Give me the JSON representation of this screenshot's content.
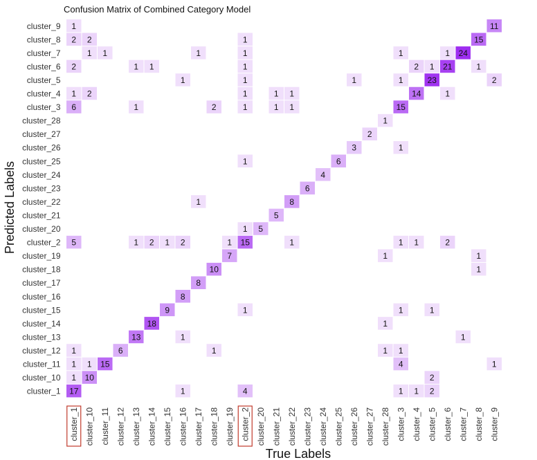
{
  "chart_data": {
    "type": "heatmap",
    "title": "Confusion Matrix of Combined Category Model",
    "xlabel": "True Labels",
    "ylabel": "Predicted Labels",
    "x_categories": [
      "cluster_1",
      "cluster_10",
      "cluster_11",
      "cluster_12",
      "cluster_13",
      "cluster_14",
      "cluster_15",
      "cluster_16",
      "cluster_17",
      "cluster_18",
      "cluster_19",
      "cluster_2",
      "cluster_20",
      "cluster_21",
      "cluster_22",
      "cluster_23",
      "cluster_24",
      "cluster_25",
      "cluster_26",
      "cluster_27",
      "cluster_28",
      "cluster_3",
      "cluster_4",
      "cluster_5",
      "cluster_6",
      "cluster_7",
      "cluster_8",
      "cluster_9"
    ],
    "y_categories": [
      "cluster_9",
      "cluster_8",
      "cluster_7",
      "cluster_6",
      "cluster_5",
      "cluster_4",
      "cluster_3",
      "cluster_28",
      "cluster_27",
      "cluster_26",
      "cluster_25",
      "cluster_24",
      "cluster_23",
      "cluster_22",
      "cluster_21",
      "cluster_20",
      "cluster_2",
      "cluster_19",
      "cluster_18",
      "cluster_17",
      "cluster_16",
      "cluster_15",
      "cluster_14",
      "cluster_13",
      "cluster_12",
      "cluster_11",
      "cluster_10",
      "cluster_1"
    ],
    "cells": [
      [
        "cluster_1",
        "cluster_9",
        1
      ],
      [
        "cluster_9",
        "cluster_9",
        11
      ],
      [
        "cluster_1",
        "cluster_8",
        2
      ],
      [
        "cluster_10",
        "cluster_8",
        2
      ],
      [
        "cluster_2",
        "cluster_8",
        1
      ],
      [
        "cluster_8",
        "cluster_8",
        15
      ],
      [
        "cluster_10",
        "cluster_7",
        1
      ],
      [
        "cluster_11",
        "cluster_7",
        1
      ],
      [
        "cluster_17",
        "cluster_7",
        1
      ],
      [
        "cluster_2",
        "cluster_7",
        1
      ],
      [
        "cluster_3",
        "cluster_7",
        1
      ],
      [
        "cluster_6",
        "cluster_7",
        1
      ],
      [
        "cluster_7",
        "cluster_7",
        24
      ],
      [
        "cluster_1",
        "cluster_6",
        2
      ],
      [
        "cluster_13",
        "cluster_6",
        1
      ],
      [
        "cluster_14",
        "cluster_6",
        1
      ],
      [
        "cluster_2",
        "cluster_6",
        1
      ],
      [
        "cluster_4",
        "cluster_6",
        2
      ],
      [
        "cluster_5",
        "cluster_6",
        1
      ],
      [
        "cluster_6",
        "cluster_6",
        21
      ],
      [
        "cluster_8",
        "cluster_6",
        1
      ],
      [
        "cluster_16",
        "cluster_5",
        1
      ],
      [
        "cluster_2",
        "cluster_5",
        1
      ],
      [
        "cluster_26",
        "cluster_5",
        1
      ],
      [
        "cluster_3",
        "cluster_5",
        1
      ],
      [
        "cluster_5",
        "cluster_5",
        23
      ],
      [
        "cluster_9",
        "cluster_5",
        2
      ],
      [
        "cluster_1",
        "cluster_4",
        1
      ],
      [
        "cluster_10",
        "cluster_4",
        2
      ],
      [
        "cluster_2",
        "cluster_4",
        1
      ],
      [
        "cluster_21",
        "cluster_4",
        1
      ],
      [
        "cluster_22",
        "cluster_4",
        1
      ],
      [
        "cluster_4",
        "cluster_4",
        14
      ],
      [
        "cluster_6",
        "cluster_4",
        1
      ],
      [
        "cluster_1",
        "cluster_3",
        6
      ],
      [
        "cluster_13",
        "cluster_3",
        1
      ],
      [
        "cluster_18",
        "cluster_3",
        2
      ],
      [
        "cluster_2",
        "cluster_3",
        1
      ],
      [
        "cluster_21",
        "cluster_3",
        1
      ],
      [
        "cluster_22",
        "cluster_3",
        1
      ],
      [
        "cluster_3",
        "cluster_3",
        15
      ],
      [
        "cluster_28",
        "cluster_28",
        1
      ],
      [
        "cluster_27",
        "cluster_27",
        2
      ],
      [
        "cluster_26",
        "cluster_26",
        3
      ],
      [
        "cluster_3",
        "cluster_26",
        1
      ],
      [
        "cluster_2",
        "cluster_25",
        1
      ],
      [
        "cluster_25",
        "cluster_25",
        6
      ],
      [
        "cluster_24",
        "cluster_24",
        4
      ],
      [
        "cluster_23",
        "cluster_23",
        6
      ],
      [
        "cluster_17",
        "cluster_22",
        1
      ],
      [
        "cluster_22",
        "cluster_22",
        8
      ],
      [
        "cluster_21",
        "cluster_21",
        5
      ],
      [
        "cluster_2",
        "cluster_20",
        1
      ],
      [
        "cluster_20",
        "cluster_20",
        5
      ],
      [
        "cluster_1",
        "cluster_2",
        5
      ],
      [
        "cluster_13",
        "cluster_2",
        1
      ],
      [
        "cluster_14",
        "cluster_2",
        2
      ],
      [
        "cluster_15",
        "cluster_2",
        1
      ],
      [
        "cluster_16",
        "cluster_2",
        2
      ],
      [
        "cluster_19",
        "cluster_2",
        1
      ],
      [
        "cluster_2",
        "cluster_2",
        15
      ],
      [
        "cluster_22",
        "cluster_2",
        1
      ],
      [
        "cluster_3",
        "cluster_2",
        1
      ],
      [
        "cluster_4",
        "cluster_2",
        1
      ],
      [
        "cluster_6",
        "cluster_2",
        2
      ],
      [
        "cluster_19",
        "cluster_19",
        7
      ],
      [
        "cluster_28",
        "cluster_19",
        1
      ],
      [
        "cluster_8",
        "cluster_19",
        1
      ],
      [
        "cluster_18",
        "cluster_18",
        10
      ],
      [
        "cluster_8",
        "cluster_18",
        1
      ],
      [
        "cluster_17",
        "cluster_17",
        8
      ],
      [
        "cluster_16",
        "cluster_16",
        8
      ],
      [
        "cluster_15",
        "cluster_15",
        9
      ],
      [
        "cluster_2",
        "cluster_15",
        1
      ],
      [
        "cluster_3",
        "cluster_15",
        1
      ],
      [
        "cluster_5",
        "cluster_15",
        1
      ],
      [
        "cluster_14",
        "cluster_14",
        18
      ],
      [
        "cluster_28",
        "cluster_14",
        1
      ],
      [
        "cluster_13",
        "cluster_13",
        13
      ],
      [
        "cluster_16",
        "cluster_13",
        1
      ],
      [
        "cluster_7",
        "cluster_13",
        1
      ],
      [
        "cluster_1",
        "cluster_12",
        1
      ],
      [
        "cluster_12",
        "cluster_12",
        6
      ],
      [
        "cluster_18",
        "cluster_12",
        1
      ],
      [
        "cluster_28",
        "cluster_12",
        1
      ],
      [
        "cluster_3",
        "cluster_12",
        1
      ],
      [
        "cluster_1",
        "cluster_11",
        1
      ],
      [
        "cluster_10",
        "cluster_11",
        1
      ],
      [
        "cluster_11",
        "cluster_11",
        15
      ],
      [
        "cluster_3",
        "cluster_11",
        4
      ],
      [
        "cluster_9",
        "cluster_11",
        1
      ],
      [
        "cluster_1",
        "cluster_10",
        1
      ],
      [
        "cluster_10",
        "cluster_10",
        10
      ],
      [
        "cluster_5",
        "cluster_10",
        2
      ],
      [
        "cluster_1",
        "cluster_1",
        17
      ],
      [
        "cluster_16",
        "cluster_1",
        1
      ],
      [
        "cluster_2",
        "cluster_1",
        4
      ],
      [
        "cluster_3",
        "cluster_1",
        1
      ],
      [
        "cluster_4",
        "cluster_1",
        1
      ],
      [
        "cluster_5",
        "cluster_1",
        2
      ]
    ],
    "value_range": [
      0,
      24
    ],
    "color_low": "#f7eefc",
    "color_high": "#9e2ef0",
    "highlighted_x_ticks": [
      "cluster_1",
      "cluster_2"
    ],
    "highlight_color": "#c0392b",
    "grid": false,
    "legend": "none"
  }
}
